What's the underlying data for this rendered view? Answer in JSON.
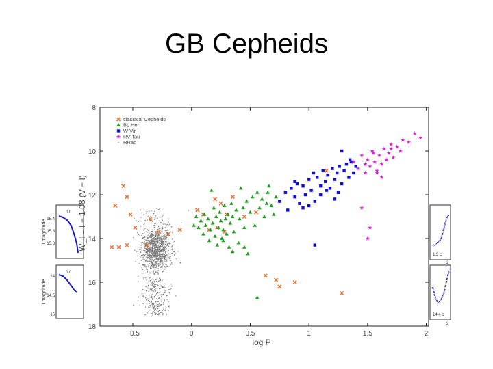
{
  "slide": {
    "title": "GB Cepheids"
  },
  "chart_data": {
    "type": "scatter",
    "title": "",
    "xlabel": "log P",
    "ylabel": "W_I = I − 1.08 (V − I)",
    "xlim": [
      -0.78,
      2.02
    ],
    "ylim": [
      18,
      8
    ],
    "x_ticks": [
      -0.5,
      0,
      0.5,
      1,
      1.5,
      2
    ],
    "x_tick_labels": [
      "−0.5",
      "0",
      "0.5",
      "1",
      "1.5",
      "2"
    ],
    "y_ticks": [
      8,
      10,
      12,
      14,
      16,
      18
    ],
    "y_tick_labels": [
      "8",
      "10",
      "12",
      "14",
      "16",
      "18"
    ],
    "legend_position": "top-left",
    "series": [
      {
        "name": "classical Cepheids",
        "marker": "x",
        "color": "#e86a2a",
        "points": [
          [
            -0.65,
            12.5
          ],
          [
            -0.58,
            11.6
          ],
          [
            -0.55,
            12.1
          ],
          [
            -0.52,
            12.9
          ],
          [
            -0.48,
            13.5
          ],
          [
            -0.68,
            14.4
          ],
          [
            -0.62,
            14.4
          ],
          [
            -0.55,
            14.3
          ],
          [
            -0.38,
            14.3
          ],
          [
            -0.35,
            13.1
          ],
          [
            -0.28,
            13.7
          ],
          [
            -0.2,
            13.8
          ],
          [
            -0.1,
            13.6
          ],
          [
            0.05,
            12.7
          ],
          [
            0.1,
            12.9
          ],
          [
            0.15,
            13.6
          ],
          [
            0.2,
            12.2
          ],
          [
            0.22,
            13.5
          ],
          [
            0.25,
            12.4
          ],
          [
            0.28,
            13.7
          ],
          [
            0.3,
            12.9
          ],
          [
            0.35,
            12.1
          ],
          [
            0.45,
            13.0
          ],
          [
            0.55,
            12.8
          ],
          [
            0.63,
            15.7
          ],
          [
            0.72,
            15.9
          ],
          [
            0.75,
            16.2
          ],
          [
            0.88,
            16.0
          ],
          [
            1.15,
            10.9
          ],
          [
            1.28,
            16.5
          ]
        ]
      },
      {
        "name": "BL Her",
        "marker": "triangle",
        "color": "#1aa01a",
        "points": [
          [
            0.02,
            13.4
          ],
          [
            0.04,
            13.0
          ],
          [
            0.06,
            13.5
          ],
          [
            0.08,
            13.2
          ],
          [
            0.1,
            13.8
          ],
          [
            0.11,
            12.9
          ],
          [
            0.12,
            13.4
          ],
          [
            0.14,
            13.1
          ],
          [
            0.15,
            14.1
          ],
          [
            0.16,
            13.6
          ],
          [
            0.17,
            11.8
          ],
          [
            0.18,
            13.3
          ],
          [
            0.19,
            12.6
          ],
          [
            0.2,
            13.9
          ],
          [
            0.21,
            13.0
          ],
          [
            0.22,
            14.3
          ],
          [
            0.23,
            13.5
          ],
          [
            0.24,
            12.8
          ],
          [
            0.25,
            13.2
          ],
          [
            0.26,
            14.0
          ],
          [
            0.27,
            13.6
          ],
          [
            0.28,
            12.5
          ],
          [
            0.29,
            13.1
          ],
          [
            0.3,
            13.8
          ],
          [
            0.31,
            12.9
          ],
          [
            0.32,
            14.4
          ],
          [
            0.33,
            13.3
          ],
          [
            0.34,
            12.4
          ],
          [
            0.35,
            13.0
          ],
          [
            0.36,
            13.7
          ],
          [
            0.38,
            12.7
          ],
          [
            0.4,
            14.2
          ],
          [
            0.41,
            13.1
          ],
          [
            0.42,
            11.7
          ],
          [
            0.44,
            12.6
          ],
          [
            0.45,
            13.5
          ],
          [
            0.47,
            12.3
          ],
          [
            0.48,
            14.7
          ],
          [
            0.5,
            12.8
          ],
          [
            0.52,
            12.1
          ],
          [
            0.54,
            13.4
          ],
          [
            0.56,
            11.9
          ],
          [
            0.58,
            12.6
          ],
          [
            0.6,
            12.2
          ],
          [
            0.62,
            13.0
          ],
          [
            0.64,
            12.4
          ],
          [
            0.66,
            11.6
          ],
          [
            0.68,
            12.5
          ],
          [
            0.7,
            12.9
          ],
          [
            0.72,
            12.1
          ],
          [
            0.56,
            16.7
          ],
          [
            0.65,
            11.9
          ],
          [
            0.45,
            14.4
          ],
          [
            0.35,
            14.6
          ],
          [
            0.27,
            14.1
          ]
        ]
      },
      {
        "name": "W Vir",
        "marker": "square",
        "color": "#1010d0",
        "points": [
          [
            0.8,
            11.9
          ],
          [
            0.85,
            11.7
          ],
          [
            0.88,
            12.1
          ],
          [
            0.9,
            11.5
          ],
          [
            0.92,
            12.4
          ],
          [
            0.95,
            11.6
          ],
          [
            0.97,
            12.0
          ],
          [
            1.0,
            11.3
          ],
          [
            1.02,
            11.8
          ],
          [
            1.04,
            11.0
          ],
          [
            1.05,
            12.3
          ],
          [
            1.07,
            11.2
          ],
          [
            1.1,
            11.6
          ],
          [
            1.12,
            10.9
          ],
          [
            1.14,
            11.4
          ],
          [
            1.16,
            11.1
          ],
          [
            1.18,
            11.7
          ],
          [
            1.2,
            10.8
          ],
          [
            1.22,
            11.3
          ],
          [
            1.24,
            11.0
          ],
          [
            1.26,
            10.7
          ],
          [
            1.28,
            11.5
          ],
          [
            1.3,
            10.9
          ],
          [
            1.32,
            10.6
          ],
          [
            1.34,
            11.2
          ],
          [
            1.36,
            10.5
          ],
          [
            1.38,
            11.0
          ],
          [
            1.4,
            10.7
          ],
          [
            1.28,
            10.0
          ],
          [
            0.95,
            12.6
          ],
          [
            0.82,
            12.7
          ],
          [
            0.75,
            12.3
          ],
          [
            1.0,
            12.5
          ],
          [
            1.1,
            12.0
          ],
          [
            1.22,
            12.2
          ],
          [
            1.25,
            11.9
          ],
          [
            1.05,
            14.3
          ],
          [
            1.15,
            11.8
          ],
          [
            1.35,
            10.4
          ],
          [
            0.88,
            11.4
          ]
        ]
      },
      {
        "name": "RV Tau",
        "marker": "star",
        "color": "#e020e0",
        "points": [
          [
            1.38,
            10.5
          ],
          [
            1.42,
            10.8
          ],
          [
            1.45,
            10.2
          ],
          [
            1.48,
            11.0
          ],
          [
            1.5,
            10.4
          ],
          [
            1.52,
            10.7
          ],
          [
            1.54,
            10.0
          ],
          [
            1.56,
            10.5
          ],
          [
            1.58,
            10.9
          ],
          [
            1.6,
            10.2
          ],
          [
            1.62,
            10.6
          ],
          [
            1.64,
            9.9
          ],
          [
            1.66,
            10.4
          ],
          [
            1.68,
            10.1
          ],
          [
            1.7,
            9.7
          ],
          [
            1.72,
            10.3
          ],
          [
            1.75,
            9.8
          ],
          [
            1.8,
            9.5
          ],
          [
            1.85,
            9.6
          ],
          [
            1.9,
            9.2
          ],
          [
            1.95,
            9.4
          ],
          [
            1.45,
            12.6
          ],
          [
            1.52,
            13.5
          ],
          [
            1.5,
            14.0
          ],
          [
            1.58,
            11.0
          ],
          [
            1.55,
            10.1
          ],
          [
            1.7,
            9.9
          ],
          [
            1.62,
            11.2
          ],
          [
            1.48,
            10.6
          ],
          [
            1.78,
            10.0
          ]
        ]
      },
      {
        "name": "RRab",
        "marker": "dot",
        "color": "#7a7a7a",
        "count": 1500,
        "distribution": "dense clump near log P ≈ −0.3, W_I ≈ 14.5; tail toward W_I ≈ 17.5"
      }
    ]
  },
  "insets": {
    "left_top": {
      "ylabel": "I magnitude",
      "y_tick_labels": [
        "15.4",
        "15.6",
        "15.8"
      ],
      "corner_label": "0.0"
    },
    "left_bottom": {
      "ylabel": "I magnitude",
      "y_tick_labels": [
        "14",
        "14.5",
        "15"
      ],
      "corner_label": "0.0"
    },
    "right_top": {
      "corner_label": "1.5 c",
      "x_tick_label": "2"
    },
    "right_bottom": {
      "corner_label": "14.4 c",
      "x_tick_label": "2"
    }
  }
}
